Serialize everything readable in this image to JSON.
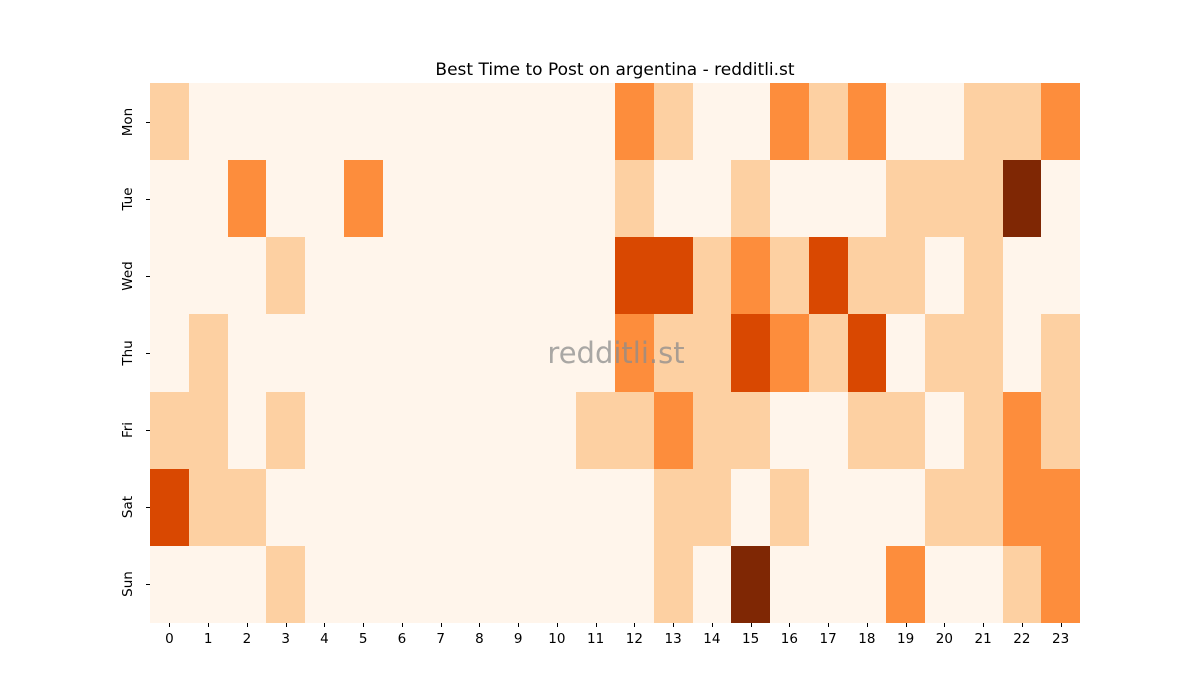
{
  "title": "Best Time to Post on argentina - redditli.st",
  "watermark": "redditli.st",
  "palette": {
    "level0": "#fff5eb",
    "level1": "#fdd0a2",
    "level2": "#fd8d3c",
    "level3": "#d94801",
    "level4": "#7f2704"
  },
  "chart_data": {
    "type": "heatmap",
    "title": "Best Time to Post on argentina - redditli.st",
    "xlabel": "",
    "ylabel": "",
    "colormap": "Oranges",
    "legend": "none",
    "grid": false,
    "x_labels": [
      "0",
      "1",
      "2",
      "3",
      "4",
      "5",
      "6",
      "7",
      "8",
      "9",
      "10",
      "11",
      "12",
      "13",
      "14",
      "15",
      "16",
      "17",
      "18",
      "19",
      "20",
      "21",
      "22",
      "23"
    ],
    "y_labels": [
      "Mon",
      "Tue",
      "Wed",
      "Thu",
      "Fri",
      "Sat",
      "Sun"
    ],
    "value_range": [
      0,
      4
    ],
    "values": [
      [
        1,
        0,
        0,
        0,
        0,
        0,
        0,
        0,
        0,
        0,
        0,
        0,
        2,
        1,
        0,
        0,
        2,
        1,
        2,
        0,
        0,
        1,
        1,
        2
      ],
      [
        0,
        0,
        2,
        0,
        0,
        2,
        0,
        0,
        0,
        0,
        0,
        0,
        1,
        0,
        0,
        1,
        0,
        0,
        0,
        1,
        1,
        1,
        4,
        0
      ],
      [
        0,
        0,
        0,
        1,
        0,
        0,
        0,
        0,
        0,
        0,
        0,
        0,
        3,
        3,
        1,
        2,
        1,
        3,
        1,
        1,
        0,
        1,
        0,
        0
      ],
      [
        0,
        1,
        0,
        0,
        0,
        0,
        0,
        0,
        0,
        0,
        0,
        0,
        2,
        1,
        1,
        3,
        2,
        1,
        3,
        0,
        1,
        1,
        0,
        1
      ],
      [
        1,
        1,
        0,
        1,
        0,
        0,
        0,
        0,
        0,
        0,
        0,
        1,
        1,
        2,
        1,
        1,
        0,
        0,
        1,
        1,
        0,
        1,
        2,
        1
      ],
      [
        3,
        1,
        1,
        0,
        0,
        0,
        0,
        0,
        0,
        0,
        0,
        0,
        0,
        1,
        1,
        0,
        1,
        0,
        0,
        0,
        1,
        1,
        2,
        2
      ],
      [
        0,
        0,
        0,
        1,
        0,
        0,
        0,
        0,
        0,
        0,
        0,
        0,
        0,
        1,
        0,
        4,
        0,
        0,
        0,
        2,
        0,
        0,
        1,
        2
      ]
    ]
  }
}
